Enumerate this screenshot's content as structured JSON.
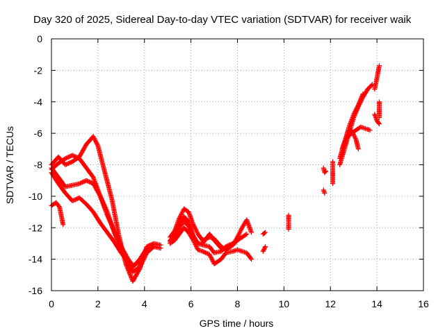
{
  "chart_data": {
    "type": "scatter",
    "title": "Day 320 of 2025, Sidereal Day-to-day VTEC variation (SDTVAR) for receiver waik",
    "xlabel": "GPS time / hours",
    "ylabel": "SDTVAR / TECUs",
    "xlim": [
      0,
      16
    ],
    "ylim": [
      -16,
      0
    ],
    "xticks": [
      0,
      2,
      4,
      6,
      8,
      10,
      12,
      14,
      16
    ],
    "yticks": [
      0,
      -2,
      -4,
      -6,
      -8,
      -10,
      -12,
      -14,
      -16
    ],
    "grid": true,
    "marker": "+",
    "color": "#ff0000",
    "tracks": [
      [
        [
          0.0,
          -8.0
        ],
        [
          0.3,
          -7.5
        ],
        [
          0.6,
          -8.0
        ],
        [
          0.9,
          -7.8
        ],
        [
          1.2,
          -7.5
        ],
        [
          1.5,
          -6.7
        ],
        [
          1.8,
          -6.2
        ],
        [
          2.0,
          -6.8
        ],
        [
          2.3,
          -8.5
        ],
        [
          2.6,
          -10.2
        ],
        [
          2.9,
          -12.5
        ],
        [
          3.2,
          -14.3
        ],
        [
          3.5,
          -15.4
        ],
        [
          3.8,
          -14.6
        ],
        [
          4.1,
          -13.2
        ],
        [
          4.4,
          -13.0
        ],
        [
          4.7,
          -13.1
        ]
      ],
      [
        [
          0.0,
          -8.3
        ],
        [
          0.3,
          -7.9
        ],
        [
          0.6,
          -7.6
        ],
        [
          0.9,
          -7.4
        ],
        [
          1.2,
          -7.6
        ],
        [
          1.5,
          -8.2
        ],
        [
          1.8,
          -8.8
        ],
        [
          2.1,
          -10.0
        ],
        [
          2.4,
          -11.2
        ],
        [
          2.7,
          -12.2
        ],
        [
          3.0,
          -13.2
        ],
        [
          3.3,
          -14.0
        ],
        [
          3.5,
          -14.4
        ],
        [
          3.8,
          -14.2
        ],
        [
          4.1,
          -13.4
        ],
        [
          4.4,
          -13.2
        ],
        [
          4.7,
          -13.3
        ]
      ],
      [
        [
          0.0,
          -8.2
        ],
        [
          0.3,
          -8.8
        ],
        [
          0.6,
          -9.4
        ],
        [
          0.9,
          -9.3
        ],
        [
          1.2,
          -9.2
        ],
        [
          1.5,
          -9.0
        ],
        [
          1.8,
          -9.2
        ],
        [
          2.1,
          -10.0
        ],
        [
          2.4,
          -11.0
        ],
        [
          2.7,
          -12.3
        ],
        [
          3.0,
          -13.4
        ],
        [
          3.3,
          -14.4
        ],
        [
          3.5,
          -14.8
        ],
        [
          3.8,
          -14.5
        ],
        [
          4.1,
          -13.6
        ],
        [
          4.4,
          -13.2
        ]
      ],
      [
        [
          0.0,
          -8.5
        ],
        [
          0.3,
          -9.2
        ],
        [
          0.6,
          -9.8
        ],
        [
          0.9,
          -10.3
        ],
        [
          1.2,
          -10.1
        ],
        [
          1.5,
          -10.5
        ],
        [
          1.8,
          -11.0
        ],
        [
          2.1,
          -11.7
        ],
        [
          2.4,
          -12.3
        ],
        [
          2.7,
          -12.9
        ],
        [
          3.0,
          -13.6
        ],
        [
          3.3,
          -14.2
        ],
        [
          3.5,
          -14.5
        ],
        [
          3.8,
          -14.0
        ],
        [
          4.1,
          -13.3
        ]
      ],
      [
        [
          0.0,
          -10.6
        ],
        [
          0.2,
          -10.4
        ],
        [
          0.35,
          -10.7
        ],
        [
          0.5,
          -11.8
        ]
      ],
      [
        [
          5.1,
          -12.6
        ],
        [
          5.3,
          -12.2
        ],
        [
          5.5,
          -11.4
        ],
        [
          5.7,
          -10.8
        ],
        [
          5.9,
          -11.0
        ],
        [
          6.1,
          -11.8
        ],
        [
          6.3,
          -12.4
        ],
        [
          6.5,
          -12.8
        ],
        [
          6.8,
          -12.6
        ],
        [
          7.0,
          -12.7
        ],
        [
          7.3,
          -13.2
        ],
        [
          7.5,
          -13.4
        ],
        [
          7.8,
          -13.1
        ],
        [
          8.0,
          -12.6
        ],
        [
          8.2,
          -12.0
        ],
        [
          8.4,
          -11.5
        ],
        [
          8.6,
          -12.3
        ]
      ],
      [
        [
          5.1,
          -12.9
        ],
        [
          5.3,
          -12.6
        ],
        [
          5.5,
          -12.0
        ],
        [
          5.7,
          -11.6
        ],
        [
          5.9,
          -11.9
        ],
        [
          6.1,
          -12.5
        ],
        [
          6.3,
          -13.0
        ],
        [
          6.5,
          -13.0
        ],
        [
          6.8,
          -12.4
        ],
        [
          7.0,
          -12.8
        ],
        [
          7.3,
          -13.3
        ],
        [
          7.5,
          -13.4
        ],
        [
          7.8,
          -13.1
        ],
        [
          8.0,
          -12.8
        ],
        [
          8.2,
          -12.6
        ],
        [
          8.4,
          -12.4
        ]
      ],
      [
        [
          5.1,
          -13.0
        ],
        [
          5.3,
          -12.8
        ],
        [
          5.5,
          -12.4
        ],
        [
          5.7,
          -12.0
        ],
        [
          5.9,
          -12.3
        ],
        [
          6.1,
          -12.8
        ],
        [
          6.3,
          -13.4
        ],
        [
          6.5,
          -13.5
        ],
        [
          6.8,
          -13.7
        ],
        [
          7.0,
          -14.3
        ],
        [
          7.3,
          -14.0
        ],
        [
          7.5,
          -13.6
        ],
        [
          7.8,
          -13.5
        ],
        [
          8.0,
          -13.4
        ],
        [
          8.2,
          -13.5
        ],
        [
          8.4,
          -13.6
        ],
        [
          8.6,
          -14.0
        ]
      ],
      [
        [
          5.1,
          -12.8
        ],
        [
          5.3,
          -12.5
        ],
        [
          5.5,
          -11.8
        ],
        [
          5.7,
          -11.3
        ],
        [
          5.9,
          -11.6
        ],
        [
          6.1,
          -12.6
        ],
        [
          6.3,
          -13.0
        ],
        [
          6.5,
          -13.1
        ],
        [
          6.8,
          -13.2
        ],
        [
          7.0,
          -13.6
        ],
        [
          7.3,
          -13.5
        ],
        [
          7.5,
          -13.2
        ],
        [
          7.8,
          -13.0
        ]
      ],
      [
        [
          9.1,
          -12.4
        ],
        [
          9.2,
          -12.3
        ]
      ],
      [
        [
          9.1,
          -13.5
        ],
        [
          9.2,
          -13.2
        ]
      ],
      [
        [
          10.2,
          -11.2
        ],
        [
          10.2,
          -11.6
        ],
        [
          10.2,
          -12.1
        ]
      ],
      [
        [
          11.7,
          -8.2
        ],
        [
          11.75,
          -8.5
        ],
        [
          11.8,
          -8.4
        ]
      ],
      [
        [
          11.7,
          -9.6
        ],
        [
          11.75,
          -9.8
        ]
      ],
      [
        [
          12.1,
          -7.8
        ],
        [
          12.1,
          -8.3
        ],
        [
          12.1,
          -8.7
        ],
        [
          12.1,
          -9.2
        ]
      ],
      [
        [
          12.4,
          -8.0
        ],
        [
          12.6,
          -7.0
        ],
        [
          12.8,
          -6.0
        ],
        [
          13.0,
          -5.0
        ],
        [
          13.2,
          -4.3
        ],
        [
          13.4,
          -3.7
        ],
        [
          13.6,
          -3.2
        ],
        [
          13.8,
          -2.9
        ]
      ],
      [
        [
          12.4,
          -7.6
        ],
        [
          12.6,
          -6.6
        ],
        [
          12.8,
          -5.6
        ],
        [
          13.0,
          -4.8
        ],
        [
          13.2,
          -4.2
        ],
        [
          13.4,
          -3.5
        ]
      ],
      [
        [
          12.5,
          -7.0
        ],
        [
          12.7,
          -6.2
        ],
        [
          12.9,
          -5.8
        ],
        [
          13.1,
          -6.4
        ],
        [
          13.2,
          -7.0
        ]
      ],
      [
        [
          12.7,
          -6.3
        ],
        [
          12.9,
          -6.0
        ],
        [
          13.1,
          -5.8
        ],
        [
          13.3,
          -5.6
        ],
        [
          13.5,
          -5.7
        ],
        [
          13.7,
          -5.8
        ]
      ],
      [
        [
          13.9,
          -3.2
        ],
        [
          14.0,
          -2.5
        ],
        [
          14.1,
          -1.7
        ]
      ],
      [
        [
          13.9,
          -4.8
        ],
        [
          14.0,
          -5.2
        ],
        [
          14.1,
          -5.4
        ]
      ],
      [
        [
          14.1,
          -4.0
        ],
        [
          14.1,
          -4.6
        ],
        [
          14.1,
          -5.0
        ]
      ]
    ]
  }
}
